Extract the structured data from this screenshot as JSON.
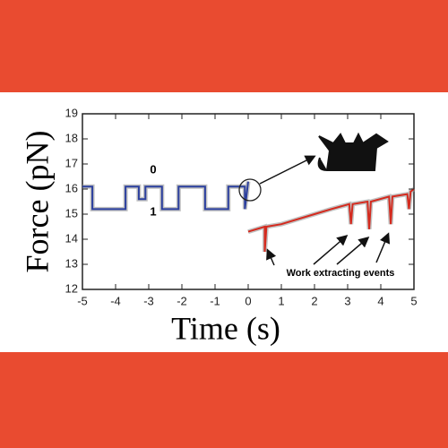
{
  "chart_data": {
    "type": "line",
    "x_label": "Time (s)",
    "y_label": "Force (pN)",
    "xlim": [
      -5,
      5
    ],
    "xticks": [
      -5,
      -4,
      -3,
      -2,
      -1,
      0,
      1,
      2,
      3,
      4,
      5
    ],
    "ylim": [
      12,
      19
    ],
    "yticks": [
      12,
      13,
      14,
      15,
      16,
      17,
      18,
      19
    ],
    "annotations": [
      "0",
      "1",
      "Work extracting events"
    ],
    "series": [
      {
        "color": "#2b3f9e",
        "x": [
          -5,
          -4.7,
          -4.7,
          -3.7,
          -3.7,
          -3.3,
          -3.3,
          -3.1,
          -3.1,
          -2.6,
          -2.6,
          -2.1,
          -2.1,
          -1.3,
          -1.3,
          -0.6,
          -0.6,
          -0.1,
          -0.1,
          0
        ],
        "values": [
          16.1,
          16.1,
          15.2,
          15.2,
          16.1,
          16.1,
          15.6,
          15.6,
          16.1,
          16.1,
          15.2,
          15.2,
          16.1,
          16.1,
          15.2,
          15.2,
          16.1,
          16.1,
          15.2,
          16.3
        ]
      },
      {
        "color": "#d42a1e",
        "x": [
          0,
          0.5,
          0.5,
          0.55,
          1,
          1.5,
          2,
          2.5,
          3.05,
          3.1,
          3.15,
          3.6,
          3.65,
          3.7,
          4.25,
          4.3,
          4.35,
          4.8,
          4.85,
          4.9,
          5
        ],
        "values": [
          14.3,
          14.5,
          13.5,
          14.5,
          14.6,
          14.8,
          15.0,
          15.2,
          15.4,
          14.6,
          15.4,
          15.5,
          14.4,
          15.5,
          15.7,
          14.6,
          15.7,
          15.8,
          15.2,
          15.9,
          16.0
        ]
      }
    ]
  }
}
